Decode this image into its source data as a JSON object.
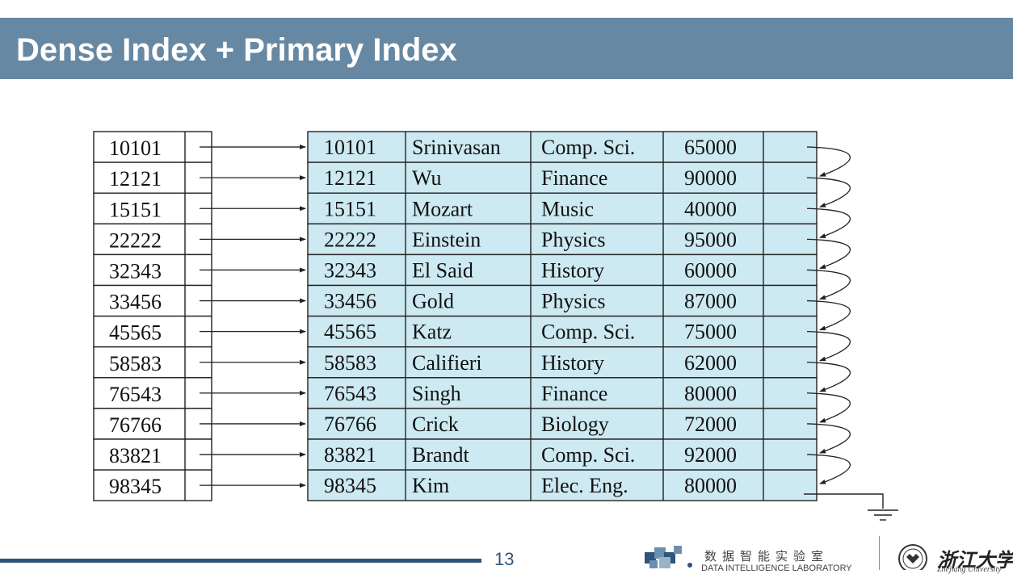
{
  "slide": {
    "title": "Dense Index + Primary Index",
    "page_number": "13"
  },
  "index_keys": [
    "10101",
    "12121",
    "15151",
    "22222",
    "32343",
    "33456",
    "45565",
    "58583",
    "76543",
    "76766",
    "83821",
    "98345"
  ],
  "records": [
    {
      "id": "10101",
      "name": "Srinivasan",
      "dept": "Comp. Sci.",
      "salary": "65000"
    },
    {
      "id": "12121",
      "name": "Wu",
      "dept": "Finance",
      "salary": "90000"
    },
    {
      "id": "15151",
      "name": "Mozart",
      "dept": "Music",
      "salary": "40000"
    },
    {
      "id": "22222",
      "name": "Einstein",
      "dept": "Physics",
      "salary": "95000"
    },
    {
      "id": "32343",
      "name": "El Said",
      "dept": "History",
      "salary": "60000"
    },
    {
      "id": "33456",
      "name": "Gold",
      "dept": "Physics",
      "salary": "87000"
    },
    {
      "id": "45565",
      "name": "Katz",
      "dept": "Comp. Sci.",
      "salary": "75000"
    },
    {
      "id": "58583",
      "name": "Califieri",
      "dept": "History",
      "salary": "62000"
    },
    {
      "id": "76543",
      "name": "Singh",
      "dept": "Finance",
      "salary": "80000"
    },
    {
      "id": "76766",
      "name": "Crick",
      "dept": "Biology",
      "salary": "72000"
    },
    {
      "id": "83821",
      "name": "Brandt",
      "dept": "Comp. Sci.",
      "salary": "92000"
    },
    {
      "id": "98345",
      "name": "Kim",
      "dept": "Elec. Eng.",
      "salary": "80000"
    }
  ],
  "colors": {
    "title_bar": "#6688a3",
    "record_fill": "#cde9f2",
    "footer_line": "#2f5579"
  },
  "footer": {
    "lab_name_cn": "数据智能实验室",
    "lab_name_en": "DATA INTELLIGENCE LABORATORY",
    "university_cn": "浙江大学",
    "university_en": "Zhejiang University",
    "lab_icon": "cube-cluster-logo",
    "university_icon": "university-seal-logo"
  }
}
